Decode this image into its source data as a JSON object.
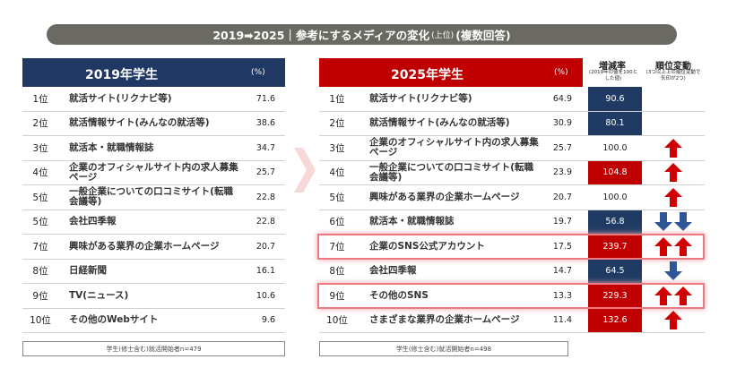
{
  "banner": {
    "title": "2019➡2025｜参考にするメディアの変化",
    "sub1": "(上位)",
    "sub2": "(複数回答)"
  },
  "left": {
    "header": "2019年学生",
    "unit": "(%)",
    "footer": "学生(修士含む)就活開始者n=479",
    "rows": [
      {
        "rank": "1位",
        "name": "就活サイト(リクナビ等)",
        "pct": "71.6"
      },
      {
        "rank": "2位",
        "name": "就活情報サイト(みんなの就活等)",
        "pct": "38.6"
      },
      {
        "rank": "3位",
        "name": "就活本・就職情報誌",
        "pct": "34.7"
      },
      {
        "rank": "4位",
        "name": "企業のオフィシャルサイト内の求人募集\nページ",
        "pct": "25.7"
      },
      {
        "rank": "5位",
        "name": "一般企業についての口コミサイト(転職\n会議等)",
        "pct": "22.8"
      },
      {
        "rank": "5位",
        "name": "会社四季報",
        "pct": "22.8"
      },
      {
        "rank": "7位",
        "name": "興味がある業界の企業ホームページ",
        "pct": "20.7"
      },
      {
        "rank": "8位",
        "name": "日経新聞",
        "pct": "16.1"
      },
      {
        "rank": "9位",
        "name": "TV(ニュース)",
        "pct": "10.6"
      },
      {
        "rank": "10位",
        "name": "その他のWebサイト",
        "pct": "9.6"
      }
    ]
  },
  "right": {
    "header": "2025年学生",
    "unit": "(%)",
    "ratio_header": "増減率",
    "ratio_note": "(2019年の値を100とした値)",
    "change_header": "順位変動",
    "change_note": "(3つ以上上の順位変動で矢印が2つ)",
    "footer": "学生(修士含む)就活開始者n=498",
    "rows": [
      {
        "rank": "1位",
        "name": "就活サイト(リクナビ等)",
        "pct": "64.9",
        "ratio": "90.6"
      },
      {
        "rank": "2位",
        "name": "就活情報サイト(みんなの就活等)",
        "pct": "30.9",
        "ratio": "80.1"
      },
      {
        "rank": "3位",
        "name": "企業のオフィシャルサイト内の求人募集\nページ",
        "pct": "25.7",
        "ratio": "100.0",
        "change": {
          "direction": "up",
          "count": 1
        }
      },
      {
        "rank": "4位",
        "name": "一般企業についての口コミサイト(転職\n会議等)",
        "pct": "23.9",
        "ratio": "104.8",
        "change": {
          "direction": "up",
          "count": 1
        }
      },
      {
        "rank": "5位",
        "name": "興味がある業界の企業ホームページ",
        "pct": "20.7",
        "ratio": "100.0",
        "change": {
          "direction": "up",
          "count": 1
        }
      },
      {
        "rank": "6位",
        "name": "就活本・就職情報誌",
        "pct": "19.7",
        "ratio": "56.8",
        "change": {
          "direction": "down",
          "count": 2
        }
      },
      {
        "rank": "7位",
        "name": "企業のSNS公式アカウント",
        "pct": "17.5",
        "ratio": "239.7",
        "change": {
          "direction": "up",
          "count": 2
        },
        "highlight": true
      },
      {
        "rank": "8位",
        "name": "会社四季報",
        "pct": "14.7",
        "ratio": "64.5",
        "change": {
          "direction": "down",
          "count": 1
        }
      },
      {
        "rank": "9位",
        "name": "その他のSNS",
        "pct": "13.3",
        "ratio": "229.3",
        "change": {
          "direction": "up",
          "count": 2
        },
        "highlight": true
      },
      {
        "rank": "10位",
        "name": "さまざまな業界の企業ホームページ",
        "pct": "11.4",
        "ratio": "132.6",
        "change": {
          "direction": "up",
          "count": 1
        }
      }
    ]
  }
}
